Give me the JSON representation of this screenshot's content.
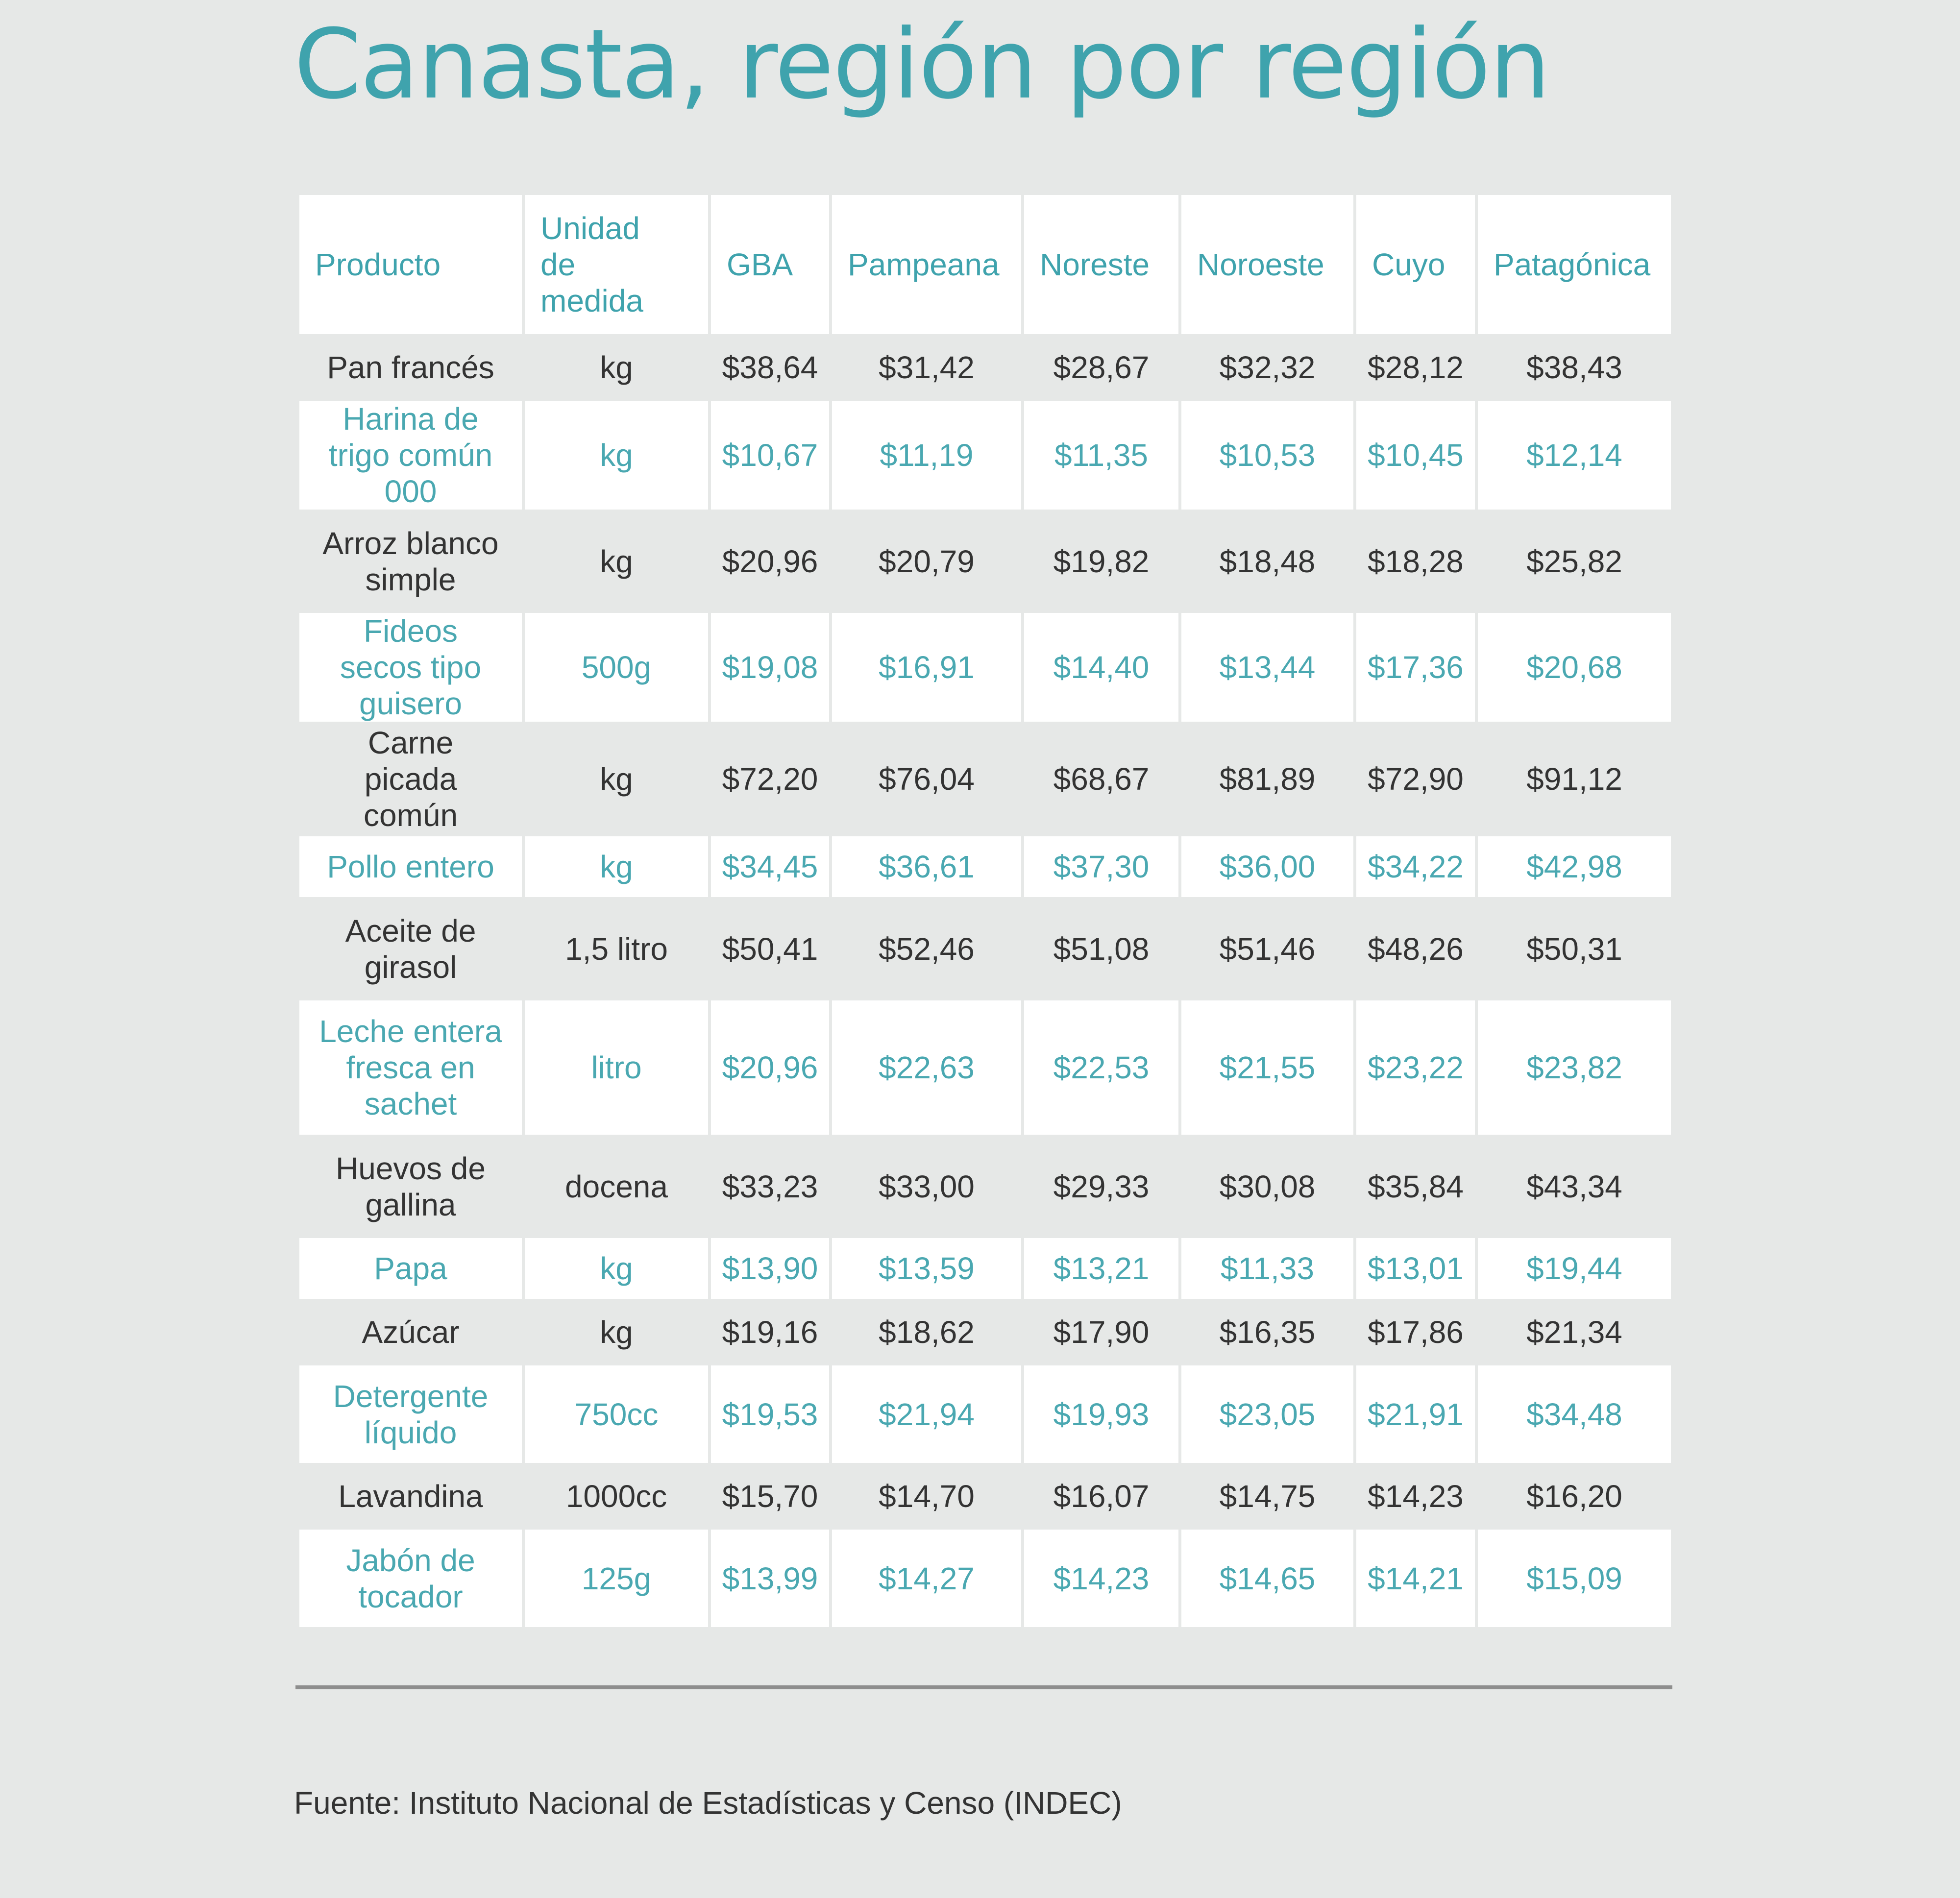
{
  "title": "Canasta, región por región",
  "source": "Fuente: Instituto Nacional de Estadísticas y Censo (INDEC)",
  "colors": {
    "accent": "#3fa3ad",
    "background": "#e6e8e7",
    "row_alt": "#ffffff",
    "text_dark": "#333333",
    "rule": "#8e8e8e"
  },
  "chart_data": {
    "type": "table",
    "title": "Canasta, región por región",
    "columns": [
      "Producto",
      "Unidad de medida",
      "GBA",
      "Pampeana",
      "Noreste",
      "Noroeste",
      "Cuyo",
      "Patagónica"
    ],
    "rows": [
      [
        "Pan francés",
        "kg",
        "$38,64",
        "$31,42",
        "$28,67",
        "$32,32",
        "$28,12",
        "$38,43"
      ],
      [
        "Harina de trigo común 000",
        "kg",
        "$10,67",
        "$11,19",
        "$11,35",
        "$10,53",
        "$10,45",
        "$12,14"
      ],
      [
        "Arroz blanco simple",
        "kg",
        "$20,96",
        "$20,79",
        "$19,82",
        "$18,48",
        "$18,28",
        "$25,82"
      ],
      [
        "Fideos secos tipo guisero",
        "500g",
        "$19,08",
        "$16,91",
        "$14,40",
        "$13,44",
        "$17,36",
        "$20,68"
      ],
      [
        "Carne picada común",
        "kg",
        "$72,20",
        "$76,04",
        "$68,67",
        "$81,89",
        "$72,90",
        "$91,12"
      ],
      [
        "Pollo entero",
        "kg",
        "$34,45",
        "$36,61",
        "$37,30",
        "$36,00",
        "$34,22",
        "$42,98"
      ],
      [
        "Aceite de girasol",
        "1,5 litro",
        "$50,41",
        "$52,46",
        "$51,08",
        "$51,46",
        "$48,26",
        "$50,31"
      ],
      [
        "Leche entera fresca en sachet",
        "litro",
        "$20,96",
        "$22,63",
        "$22,53",
        "$21,55",
        "$23,22",
        "$23,82"
      ],
      [
        "Huevos de gallina",
        "docena",
        "$33,23",
        "$33,00",
        "$29,33",
        "$30,08",
        "$35,84",
        "$43,34"
      ],
      [
        "Papa",
        "kg",
        "$13,90",
        "$13,59",
        "$13,21",
        "$11,33",
        "$13,01",
        "$19,44"
      ],
      [
        "Azúcar",
        "kg",
        "$19,16",
        "$18,62",
        "$17,90",
        "$16,35",
        "$17,86",
        "$21,34"
      ],
      [
        "Detergente líquido",
        "750cc",
        "$19,53",
        "$21,94",
        "$19,93",
        "$23,05",
        "$21,91",
        "$34,48"
      ],
      [
        "Lavandina",
        "1000cc",
        "$15,70",
        "$14,70",
        "$16,07",
        "$14,75",
        "$14,23",
        "$16,20"
      ],
      [
        "Jabón de tocador",
        "125g",
        "$13,99",
        "$14,27",
        "$14,23",
        "$14,65",
        "$14,21",
        "$15,09"
      ]
    ]
  }
}
